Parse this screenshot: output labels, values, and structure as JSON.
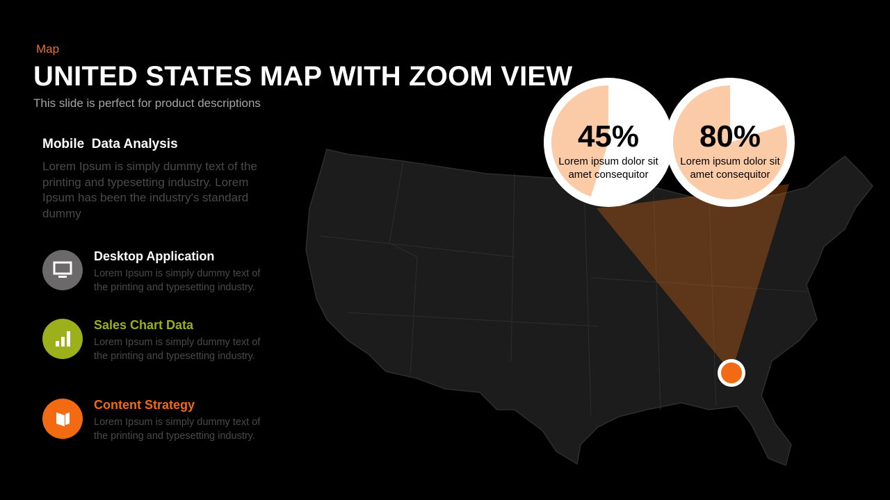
{
  "header": {
    "kicker": "Map",
    "title": "UNITED STATES MAP WITH ZOOM VIEW",
    "subtitle": "This slide is perfect for product descriptions"
  },
  "intro": {
    "heading": "Mobile  Data Analysis",
    "text": "Lorem Ipsum is simply dummy text of the printing and typesetting industry. Lorem Ipsum has been the industry's standard dummy"
  },
  "features": [
    {
      "title": "Desktop Application",
      "text": "Lorem Ipsum  is simply dummy  text of the printing and typesetting industry."
    },
    {
      "title": "Sales Chart Data",
      "text": "Lorem Ipsum  is simply dummy text of the printing and typesetting industry."
    },
    {
      "title": "Content Strategy",
      "text": "Lorem Ipsum  is simply dummy text of the printing and typesetting industry."
    }
  ],
  "stats": [
    {
      "value": 45,
      "value_label": "45%",
      "caption": "Lorem ipsum dolor sit amet consequitor"
    },
    {
      "value": 80,
      "value_label": "80%",
      "caption": "Lorem ipsum dolor sit amet consequitor"
    }
  ]
}
